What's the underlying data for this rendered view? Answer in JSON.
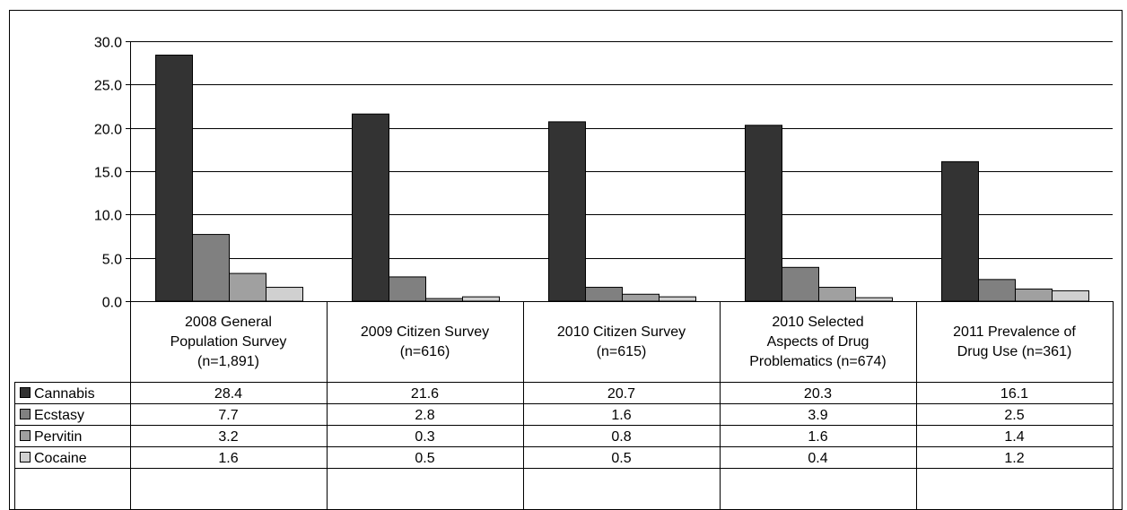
{
  "chart_data": {
    "type": "bar",
    "title": "",
    "xlabel": "",
    "ylabel": "",
    "ylim": [
      0,
      30
    ],
    "yticks": [
      "0.0",
      "5.0",
      "10.0",
      "15.0",
      "20.0",
      "25.0",
      "30.0"
    ],
    "grid": true,
    "legend": "data-table-left",
    "categories": [
      [
        "2008 General",
        "Population Survey",
        "(n=1,891)"
      ],
      [
        "2009 Citizen Survey",
        "(n=616)"
      ],
      [
        "2010 Citizen Survey",
        "(n=615)"
      ],
      [
        "2010 Selected",
        "Aspects of Drug",
        "Problematics (n=674)"
      ],
      [
        "2011 Prevalence of",
        "Drug Use (n=361)"
      ]
    ],
    "series": [
      {
        "name": "Cannabis",
        "color": "#333333",
        "values": [
          28.4,
          21.6,
          20.7,
          20.3,
          16.1
        ],
        "labels": [
          "28.4",
          "21.6",
          "20.7",
          "20.3",
          "16.1"
        ]
      },
      {
        "name": "Ecstasy",
        "color": "#808080",
        "values": [
          7.7,
          2.8,
          1.6,
          3.9,
          2.5
        ],
        "labels": [
          "7.7",
          "2.8",
          "1.6",
          "3.9",
          "2.5"
        ]
      },
      {
        "name": "Pervitin",
        "color": "#a0a0a0",
        "values": [
          3.2,
          0.3,
          0.8,
          1.6,
          1.4
        ],
        "labels": [
          "3.2",
          "0.3",
          "0.8",
          "1.6",
          "1.4"
        ]
      },
      {
        "name": "Cocaine",
        "color": "#d0d0d0",
        "values": [
          1.6,
          0.5,
          0.5,
          0.4,
          1.2
        ],
        "labels": [
          "1.6",
          "0.5",
          "0.5",
          "0.4",
          "1.2"
        ]
      }
    ]
  }
}
